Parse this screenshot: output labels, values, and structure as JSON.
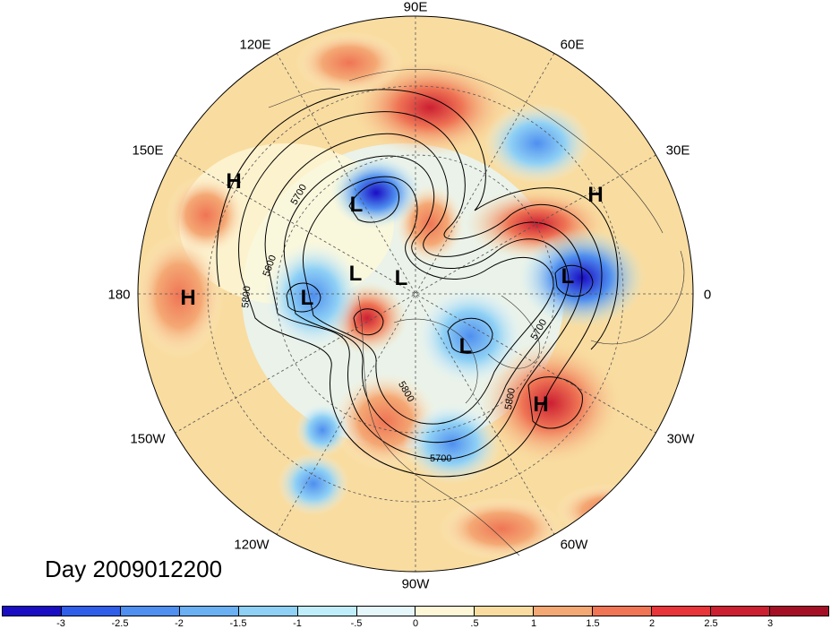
{
  "map": {
    "projection": "north-polar-stereographic",
    "variable": "500hPa geopotential height contours with standardized anomaly shading",
    "longitude_labels": [
      "90E",
      "60E",
      "30E",
      "0",
      "30W",
      "60W",
      "90W",
      "120W",
      "150W",
      "180",
      "150E",
      "120E"
    ],
    "contour_labels": [
      "5700",
      "5600",
      "5800",
      "5800",
      "5700",
      "5800",
      "5700"
    ],
    "centers": [
      {
        "type": "H",
        "region": "northwest Pacific"
      },
      {
        "type": "H",
        "region": "central Pacific near 180"
      },
      {
        "type": "H",
        "region": "northern Europe"
      },
      {
        "type": "H",
        "region": "central North Atlantic"
      },
      {
        "type": "L",
        "region": "eastern Siberia"
      },
      {
        "type": "L",
        "region": "Bering Sea"
      },
      {
        "type": "L",
        "region": "Arctic"
      },
      {
        "type": "L",
        "region": "Arctic"
      },
      {
        "type": "L",
        "region": "northeast Canada"
      },
      {
        "type": "L",
        "region": "Scandinavia"
      }
    ]
  },
  "title": "Day 2009012200",
  "colorbar": {
    "ticks": [
      "-3",
      "-2.5",
      "-2",
      "-1.5",
      "-1",
      "-.5",
      "0",
      ".5",
      "1",
      "1.5",
      "2",
      "2.5",
      "3"
    ],
    "colors": [
      "#1a0dc4",
      "#2f5fe8",
      "#4f8fef",
      "#6ab0f2",
      "#8fd0f5",
      "#bfeefa",
      "#e6f7fb",
      "#fdf7d8",
      "#f9dca0",
      "#f4a874",
      "#ef7555",
      "#e8353a",
      "#cc1f32",
      "#a50f26"
    ]
  }
}
